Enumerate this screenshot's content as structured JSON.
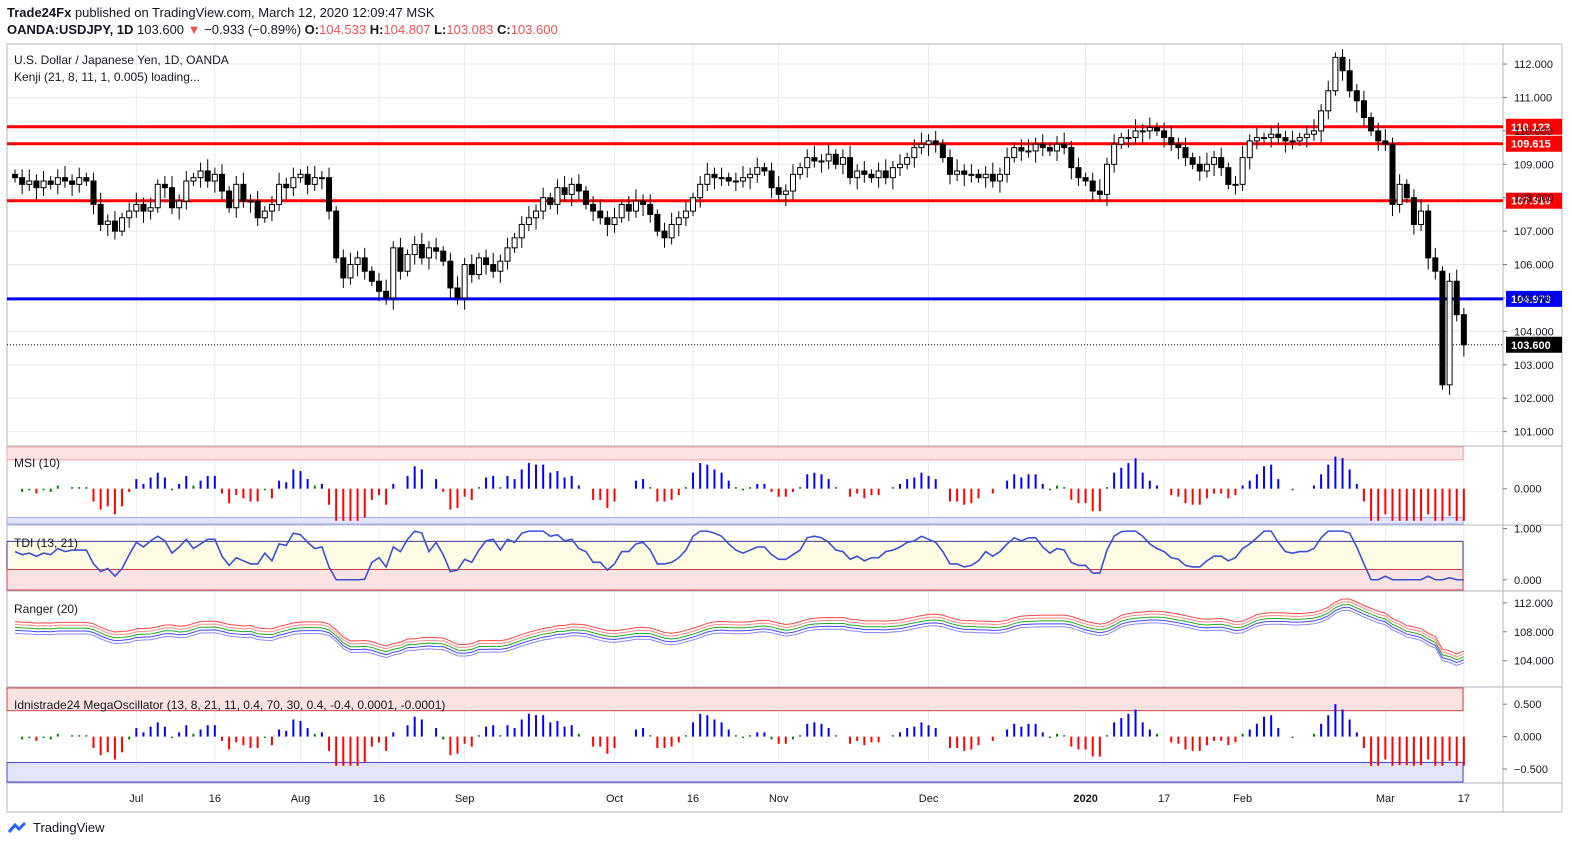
{
  "header": {
    "publisher": "Trade24Fx",
    "published_text": "published on TradingView.com, March 12, 2020 12:09:47 MSK",
    "symbol": "OANDA:USDJPY, 1D",
    "price": "103.600",
    "change": "−0.933 (−0.89%)",
    "o_label": "O:",
    "o": "104.533",
    "h_label": "H:",
    "h": "104.807",
    "l_label": "L:",
    "l": "103.083",
    "c_label": "C:",
    "c": "103.600"
  },
  "main_pane": {
    "title": "U.S. Dollar / Japanese Yen, 1D, OANDA",
    "indicator": "Kenji (21, 8, 11, 1, 0.005) loading...",
    "last_price_label": "103.600"
  },
  "footer": {
    "brand": "TradingView"
  },
  "colors": {
    "up": "#ffffff",
    "down": "#000000",
    "resistance": "#ff0000",
    "support": "#0000ff",
    "grid": "#e6e9ef"
  },
  "chart_data": [
    {
      "type": "candlestick",
      "title": "U.S. Dollar / Japanese Yen, 1D, OANDA",
      "ylim": [
        100.6,
        112.6
      ],
      "yticks": [
        101,
        102,
        103,
        104,
        105,
        106,
        107,
        108,
        109,
        110,
        111,
        112
      ],
      "ytick_labels": [
        "101.000",
        "102.000",
        "103.000",
        "104.000",
        "105.000",
        "106.000",
        "107.000",
        "108.000",
        "109.000",
        "110.000",
        "111.000",
        "112.000"
      ],
      "x_labels": [
        {
          "label": "Jul",
          "idx": 17
        },
        {
          "label": "16",
          "idx": 28
        },
        {
          "label": "Aug",
          "idx": 40
        },
        {
          "label": "16",
          "idx": 51
        },
        {
          "label": "Sep",
          "idx": 63
        },
        {
          "label": "Oct",
          "idx": 84
        },
        {
          "label": "16",
          "idx": 95
        },
        {
          "label": "Nov",
          "idx": 107
        },
        {
          "label": "Dec",
          "idx": 128
        },
        {
          "label": "2020",
          "idx": 150
        },
        {
          "label": "17",
          "idx": 161
        },
        {
          "label": "Feb",
          "idx": 172
        },
        {
          "label": "Mar",
          "idx": 192
        },
        {
          "label": "17",
          "idx": 203
        }
      ],
      "horizontal_levels": [
        {
          "value": 110.123,
          "label": "110.123",
          "color": "#ff0000"
        },
        {
          "value": 109.615,
          "label": "109.615",
          "color": "#ff0000"
        },
        {
          "value": 107.91,
          "label": "107.910",
          "color": "#ff0000"
        },
        {
          "value": 104.973,
          "label": "104.973",
          "color": "#0000ff"
        }
      ],
      "last_price": 103.6,
      "closes": [
        108.6,
        108.4,
        108.5,
        108.3,
        108.5,
        108.4,
        108.6,
        108.5,
        108.4,
        108.6,
        108.5,
        107.8,
        107.2,
        107.3,
        107.0,
        107.4,
        107.6,
        107.8,
        107.6,
        107.7,
        108.4,
        108.3,
        107.7,
        107.9,
        108.5,
        108.6,
        108.8,
        108.5,
        108.7,
        108.2,
        107.7,
        108.4,
        107.9,
        107.9,
        107.4,
        107.6,
        107.8,
        108.4,
        108.3,
        108.6,
        108.7,
        108.4,
        108.6,
        108.6,
        107.6,
        106.2,
        105.6,
        106.0,
        106.2,
        105.8,
        105.5,
        105.2,
        105.0,
        106.5,
        105.8,
        106.3,
        106.6,
        106.2,
        106.5,
        106.4,
        106.1,
        105.3,
        105.0,
        106.0,
        105.7,
        106.2,
        106.0,
        105.8,
        106.1,
        106.5,
        106.8,
        107.2,
        107.4,
        107.6,
        108.0,
        107.8,
        108.3,
        108.1,
        108.4,
        108.2,
        107.8,
        107.6,
        107.4,
        107.2,
        107.4,
        107.8,
        107.6,
        107.9,
        107.8,
        107.5,
        107.0,
        106.8,
        107.2,
        107.4,
        107.6,
        108.0,
        108.4,
        108.7,
        108.6,
        108.6,
        108.5,
        108.5,
        108.6,
        108.7,
        108.9,
        108.8,
        108.3,
        108.1,
        108.2,
        108.7,
        108.9,
        109.2,
        109.1,
        109.1,
        109.3,
        109.0,
        109.2,
        108.6,
        108.8,
        108.7,
        108.6,
        108.8,
        108.6,
        108.9,
        109.0,
        109.2,
        109.5,
        109.6,
        109.7,
        109.6,
        109.2,
        108.7,
        108.8,
        108.7,
        108.7,
        108.6,
        108.7,
        108.5,
        108.7,
        109.2,
        109.5,
        109.4,
        109.4,
        109.6,
        109.5,
        109.4,
        109.6,
        109.5,
        108.9,
        108.6,
        108.5,
        108.2,
        108.1,
        109.0,
        109.6,
        109.8,
        109.8,
        110.0,
        110.0,
        110.1,
        110.0,
        109.8,
        109.6,
        109.5,
        109.2,
        109.0,
        108.8,
        109.0,
        109.2,
        108.9,
        108.4,
        108.4,
        109.2,
        109.7,
        109.8,
        109.8,
        109.9,
        109.8,
        109.7,
        109.7,
        109.8,
        109.9,
        110.0,
        110.6,
        111.2,
        112.2,
        111.8,
        111.2,
        110.9,
        110.4,
        110.0,
        109.7,
        109.6,
        107.8,
        108.4,
        108.0,
        107.2,
        107.6,
        106.2,
        105.8,
        102.4,
        105.5,
        104.5,
        103.6
      ],
      "series_note": ""
    },
    {
      "type": "bar",
      "title": "MSI (10)",
      "ylim": [
        -0.55,
        0.65
      ],
      "yticks": [
        0.0
      ],
      "ytick_labels": [
        "0.000"
      ],
      "band_upper": 0.45,
      "band_lower": -0.45
    },
    {
      "type": "line",
      "title": "TDI (13, 21)",
      "ylim": [
        -0.2,
        1.05
      ],
      "yticks": [
        0.0,
        1.0
      ],
      "ytick_labels": [
        "0.000",
        "1.000"
      ],
      "band_upper": 0.75,
      "band_lower": 0.2
    },
    {
      "type": "line",
      "title": "Ranger (20)",
      "ylim": [
        100.5,
        113.5
      ],
      "yticks": [
        104,
        108,
        112
      ],
      "ytick_labels": [
        "104.000",
        "108.000",
        "112.000"
      ]
    },
    {
      "type": "bar",
      "title": "Idnistrade24 MegaOscillator (13, 8, 21, 11, 0.4, 70, 30, 0.4, -0.4, 0.0001, -0.0001)",
      "ylim": [
        -0.7,
        0.75
      ],
      "yticks": [
        -0.5,
        0.0,
        0.5
      ],
      "ytick_labels": [
        "−0.500",
        "0.000",
        "0.500"
      ],
      "band_upper": 0.4,
      "band_lower": -0.4
    }
  ]
}
